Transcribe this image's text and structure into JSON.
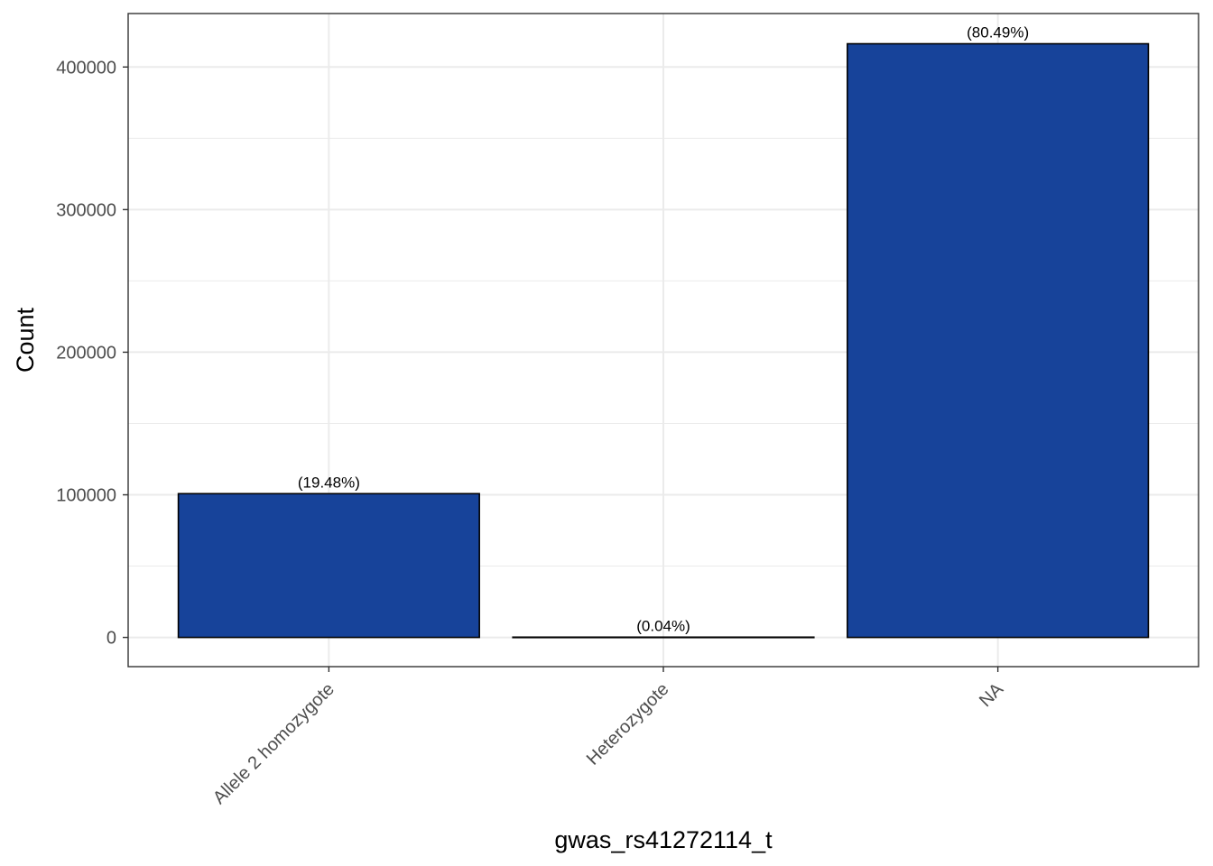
{
  "chart_data": {
    "type": "bar",
    "title": "",
    "xlabel": "gwas_rs41272114_t",
    "ylabel": "Count",
    "categories": [
      "Allele 2 homozygote",
      "Heterozygote",
      "NA"
    ],
    "values": [
      100800,
      200,
      416300
    ],
    "labels": [
      "(19.48%)",
      "(0.04%)",
      "(80.49%)"
    ],
    "ylim": [
      -20500,
      437500
    ],
    "yticks": [
      0,
      100000,
      200000,
      300000,
      400000
    ],
    "ytick_labels": [
      "0",
      "100000",
      "200000",
      "300000",
      "400000"
    ],
    "grid": true,
    "legend": "none",
    "colors": {
      "bar_fill": "#17439A",
      "bar_stroke": "#000000",
      "grid": "#EBEBEB",
      "panel_border": "#333333"
    }
  }
}
